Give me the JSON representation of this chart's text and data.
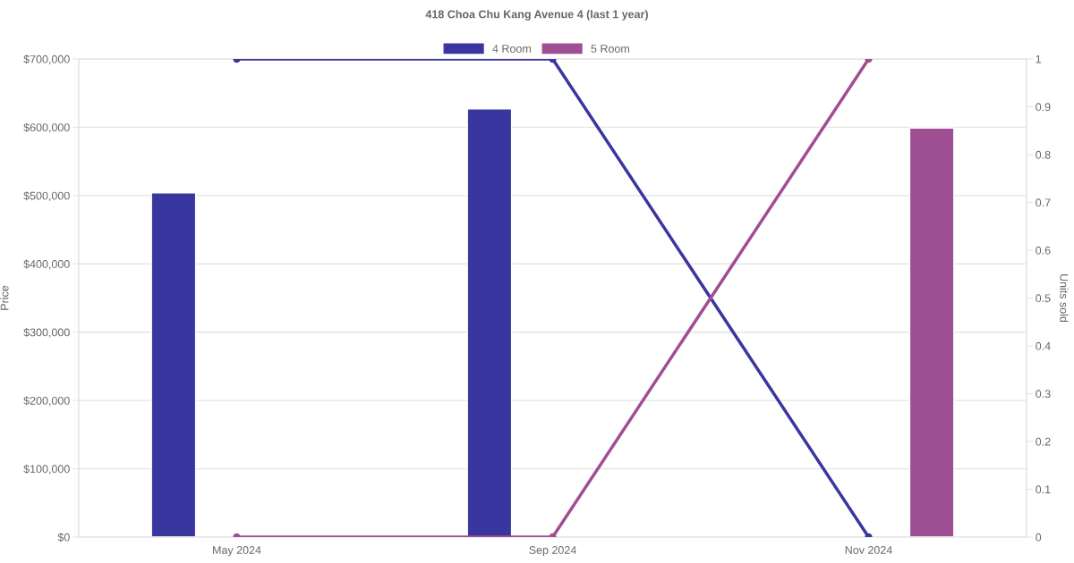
{
  "chart_data": {
    "type": "bar",
    "title": "418 Choa Chu Kang Avenue 4 (last 1 year)",
    "categories": [
      "May 2024",
      "Sep 2024",
      "Nov 2024"
    ],
    "series": [
      {
        "name": "4 Room",
        "color": "#3a36a0",
        "values": [
          504000,
          627000,
          null
        ]
      },
      {
        "name": "5 Room",
        "color": "#9e4f94",
        "values": [
          null,
          null,
          599000
        ]
      },
      {
        "type": "line",
        "axis": "y2",
        "color": "#3a36a0",
        "values": [
          1,
          1,
          0
        ]
      },
      {
        "type": "line",
        "axis": "y2",
        "color": "#9e4f94",
        "values": [
          0,
          0,
          1
        ]
      }
    ],
    "ylabel": "Price",
    "y2label": "Units sold",
    "ylim": [
      0,
      700000
    ],
    "yticks": [
      {
        "value": 0,
        "label": "$0"
      },
      {
        "value": 100000,
        "label": "$100,000"
      },
      {
        "value": 200000,
        "label": "$200,000"
      },
      {
        "value": 300000,
        "label": "$300,000"
      },
      {
        "value": 400000,
        "label": "$400,000"
      },
      {
        "value": 500000,
        "label": "$500,000"
      },
      {
        "value": 600000,
        "label": "$600,000"
      },
      {
        "value": 700000,
        "label": "$700,000"
      }
    ],
    "y2lim": [
      0,
      1
    ],
    "y2ticks": [
      0,
      0.1,
      0.2,
      0.3,
      0.4,
      0.5,
      0.6,
      0.7,
      0.8,
      0.9,
      1
    ],
    "grid": "y",
    "legend": "top",
    "marker": "circle",
    "line_style": "solid"
  }
}
